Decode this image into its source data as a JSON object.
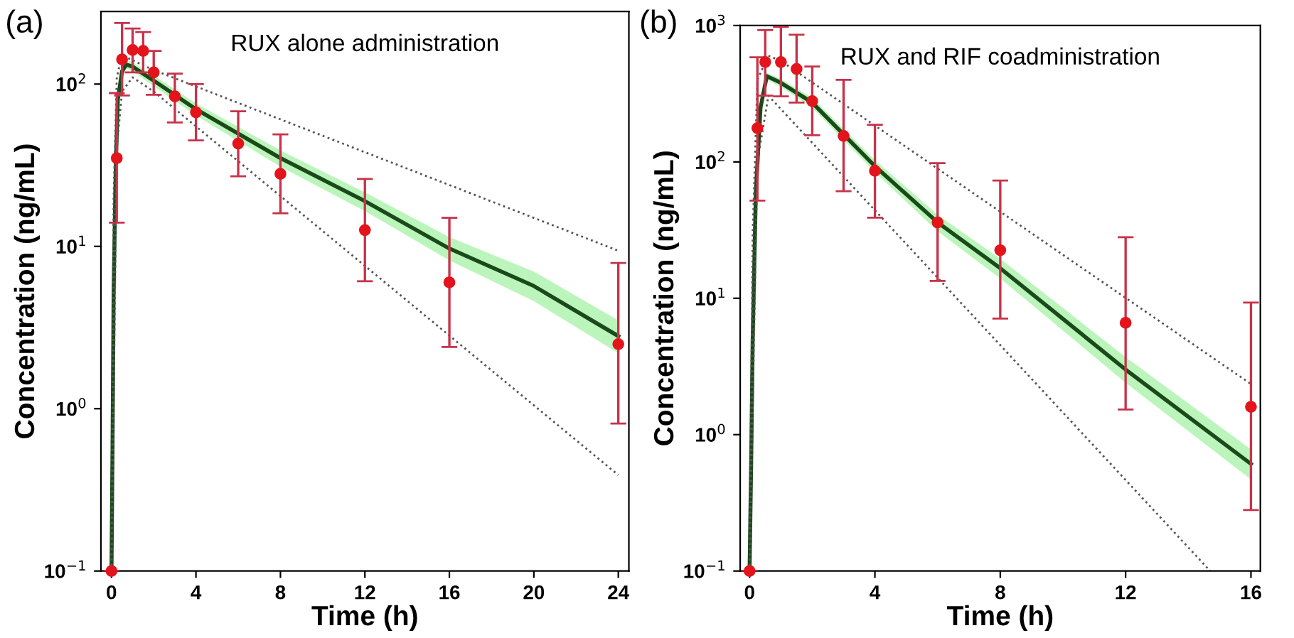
{
  "chart_data": [
    {
      "type": "line",
      "title": "RUX alone administration",
      "annotations": [
        "(a)"
      ],
      "xlabel": "Time (h)",
      "ylabel": "Concentration (ng/mL)",
      "log": "y",
      "grid": false,
      "xlim": [
        -0.5,
        24.5
      ],
      "xticks": [
        0,
        4,
        8,
        12,
        16,
        20,
        24
      ],
      "ylim": [
        0.1,
        280
      ],
      "yticks": [
        {
          "value": 0.1,
          "label": "10$^{−1}$"
        },
        {
          "value": 1,
          "label": "10$^{0}$"
        },
        {
          "value": 10,
          "label": "10$^{1}$"
        },
        {
          "value": 100,
          "label": "10$^{2}$"
        }
      ],
      "series": [
        {
          "color": "#1a4a1a",
          "line_style": "solid",
          "marker": "none",
          "x": [
            0,
            0.05,
            0.1,
            0.2,
            0.3,
            0.5,
            0.7,
            1,
            2,
            4,
            8,
            12,
            16,
            20,
            24
          ],
          "values": [
            0.1,
            0.6,
            5,
            30,
            80,
            120,
            132,
            128,
            105,
            70,
            35,
            19,
            9.7,
            5.7,
            2.8
          ],
          "lower": [
            0.1,
            0.55,
            4.6,
            28,
            75,
            113,
            124,
            120,
            97,
            64,
            31,
            16.5,
            8.2,
            4.6,
            2.2
          ],
          "upper": [
            0.1,
            0.65,
            5.4,
            32,
            85,
            127,
            140,
            136,
            113,
            76,
            39,
            21.5,
            11.4,
            7,
            3.5
          ]
        },
        {
          "color": "#555555",
          "line_style": "dotted",
          "marker": "none",
          "x": [
            0,
            0.1,
            0.25,
            0.5,
            1,
            2,
            24
          ],
          "values": [
            0.1,
            20,
            110,
            150,
            140,
            122,
            9.4
          ]
        },
        {
          "color": "#555555",
          "line_style": "dotted",
          "marker": "none",
          "x": [
            0,
            0.25,
            0.5,
            1,
            2,
            24
          ],
          "values": [
            0.1,
            40,
            90,
            110,
            90,
            0.39
          ]
        },
        {
          "type": "scatter",
          "color": "#e3141c",
          "marker": "circle",
          "x": [
            0,
            0.25,
            0.5,
            1,
            1.5,
            2,
            3,
            4,
            6,
            8,
            12,
            16,
            24
          ],
          "values": [
            0.1,
            35,
            142,
            162,
            160,
            118,
            84,
            67,
            43,
            28,
            12.6,
            6,
            2.5
          ],
          "errors": [
            null,
            [
              14,
              88
            ],
            [
              85,
              238
            ],
            [
              118,
              220
            ],
            [
              118,
              209
            ],
            [
              86,
              160
            ],
            [
              58,
              116
            ],
            [
              45,
              100
            ],
            [
              27,
              68
            ],
            [
              16,
              49
            ],
            [
              6.1,
              26
            ],
            [
              2.4,
              15
            ],
            [
              0.81,
              7.9
            ]
          ]
        }
      ]
    },
    {
      "type": "line",
      "title": "RUX and RIF coadministration",
      "annotations": [
        "(b)"
      ],
      "xlabel": "Time (h)",
      "ylabel": "Concentration (ng/mL)",
      "log": "y",
      "grid": false,
      "xlim": [
        -0.3,
        16.3
      ],
      "xticks": [
        0,
        4,
        8,
        12,
        16
      ],
      "ylim": [
        0.1,
        1000
      ],
      "yticks": [
        {
          "value": 0.1,
          "label": "10$^{−1}$"
        },
        {
          "value": 1,
          "label": "10$^{0}$"
        },
        {
          "value": 10,
          "label": "10$^{1}$"
        },
        {
          "value": 100,
          "label": "10$^{2}$"
        },
        {
          "value": 1000,
          "label": "10$^{3}$"
        }
      ],
      "series": [
        {
          "color": "#1a4a1a",
          "line_style": "solid",
          "marker": "none",
          "x": [
            0,
            0.05,
            0.1,
            0.2,
            0.35,
            0.55,
            1,
            2,
            4,
            6,
            8,
            12,
            16
          ],
          "values": [
            0.1,
            0.6,
            5,
            60,
            250,
            425,
            380,
            272,
            93,
            36,
            16.6,
            3,
            0.61
          ],
          "lower": [
            0.1,
            0.55,
            4.6,
            55,
            235,
            400,
            355,
            250,
            84,
            31,
            14,
            2.4,
            0.47
          ],
          "upper": [
            0.1,
            0.65,
            5.4,
            65,
            265,
            450,
            405,
            295,
            103,
            41,
            19.5,
            3.7,
            0.78
          ]
        },
        {
          "color": "#555555",
          "line_style": "dotted",
          "marker": "none",
          "x": [
            0,
            0.1,
            0.25,
            0.6,
            1,
            16
          ],
          "values": [
            0.1,
            30,
            400,
            600,
            550,
            2.35
          ]
        },
        {
          "color": "#555555",
          "line_style": "dotted",
          "marker": "none",
          "x": [
            0,
            0.25,
            0.6,
            14.7
          ],
          "values": [
            0.1,
            100,
            306,
            0.1
          ]
        },
        {
          "type": "scatter",
          "color": "#e3141c",
          "marker": "circle",
          "x": [
            0,
            0.25,
            0.5,
            1,
            1.5,
            2,
            3,
            4,
            6,
            8,
            12,
            16
          ],
          "values": [
            0.1,
            177,
            540,
            540,
            480,
            279,
            155,
            86,
            36,
            22.5,
            6.6,
            1.6
          ],
          "errors": [
            null,
            [
              52,
              585
            ],
            [
              306,
              925
            ],
            [
              302,
              977
            ],
            [
              272,
              855
            ],
            [
              157,
              500
            ],
            [
              61,
              400
            ],
            [
              39,
              187
            ],
            [
              13.4,
              98
            ],
            [
              7.1,
              73
            ],
            [
              1.53,
              28
            ],
            [
              0.28,
              9.3
            ]
          ]
        }
      ]
    }
  ]
}
